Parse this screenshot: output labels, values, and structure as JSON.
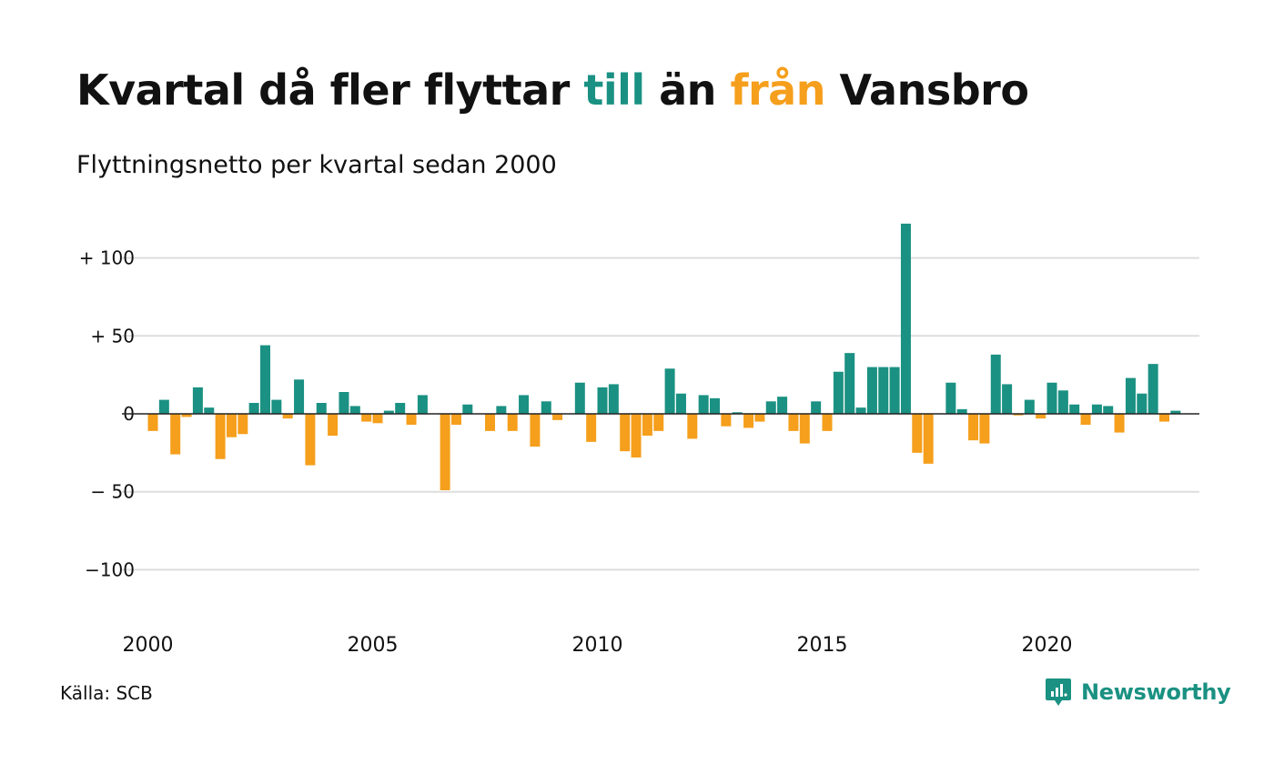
{
  "header": {
    "title_parts": [
      "Kvartal då fler flyttar ",
      "till",
      " än ",
      "från",
      " Vansbro"
    ],
    "subtitle": "Flyttningsnetto per kvartal sedan 2000"
  },
  "footer": {
    "source": "Källa: SCB",
    "brand": "Newsworthy",
    "brand_icon": "newsworthy-logo-icon"
  },
  "colors": {
    "positive": "#1a9182",
    "negative": "#f59f1c",
    "grid": "#dddddd",
    "zero_line": "#222222"
  },
  "chart_data": {
    "type": "bar",
    "title": "Kvartal då fler flyttar till än från Vansbro",
    "subtitle": "Flyttningsnetto per kvartal sedan 2000",
    "x_start": "2000Q1",
    "x_tick_labels": [
      "2000",
      "2005",
      "2010",
      "2015",
      "2020"
    ],
    "y_ticks": [
      100,
      50,
      0,
      -50,
      -100
    ],
    "y_tick_labels": [
      "+ 100",
      "+  50",
      "0",
      "− 50",
      "−100"
    ],
    "ylim": [
      -125,
      125
    ],
    "grid": true,
    "series": [
      {
        "values": [
          -11,
          9,
          -26,
          -2,
          17,
          4,
          -29,
          -15,
          -13,
          7,
          44,
          9,
          -3,
          22,
          -33,
          7,
          -14,
          14,
          5,
          -5,
          -6,
          2,
          7,
          -7,
          12,
          0,
          -49,
          -7,
          6,
          0,
          -11,
          5,
          -11,
          12,
          -21,
          8,
          -4,
          0,
          20,
          -18,
          17,
          19,
          -24,
          -28,
          -14,
          -11,
          29,
          13,
          -16,
          12,
          10,
          -8,
          1,
          -9,
          -5,
          8,
          11,
          -11,
          -19,
          8,
          -11,
          27,
          39,
          4,
          30,
          30,
          30,
          122,
          -25,
          -32,
          0,
          20,
          3,
          -17,
          -19,
          38,
          19,
          -1,
          9,
          -3,
          20,
          15,
          6,
          -7,
          6,
          5,
          -12,
          23,
          13,
          32,
          -5,
          2
        ]
      }
    ]
  }
}
